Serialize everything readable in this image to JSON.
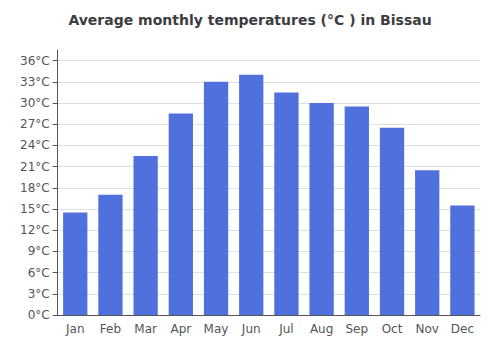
{
  "chart_data": {
    "type": "bar",
    "title": "Average monthly temperatures (°C ) in Bissau",
    "categories": [
      "Jan",
      "Feb",
      "Mar",
      "Apr",
      "May",
      "Jun",
      "Jul",
      "Aug",
      "Sep",
      "Oct",
      "Nov",
      "Dec"
    ],
    "values": [
      14.5,
      17.0,
      22.5,
      28.5,
      33.0,
      34.0,
      31.5,
      30.0,
      29.5,
      26.5,
      20.5,
      15.5
    ],
    "ylim": [
      0,
      37.5
    ],
    "yticks": [
      {
        "value": 0,
        "label": "0°C"
      },
      {
        "value": 3,
        "label": "3°C"
      },
      {
        "value": 6,
        "label": "6°C"
      },
      {
        "value": 9,
        "label": "9°C"
      },
      {
        "value": 12,
        "label": "12°C"
      },
      {
        "value": 15,
        "label": "15°C"
      },
      {
        "value": 18,
        "label": "18°C"
      },
      {
        "value": 21,
        "label": "21°C"
      },
      {
        "value": 24,
        "label": "24°C"
      },
      {
        "value": 27,
        "label": "27°C"
      },
      {
        "value": 30,
        "label": "30°C"
      },
      {
        "value": 33,
        "label": "33°C"
      },
      {
        "value": 36,
        "label": "36°C"
      }
    ],
    "grid": true
  }
}
